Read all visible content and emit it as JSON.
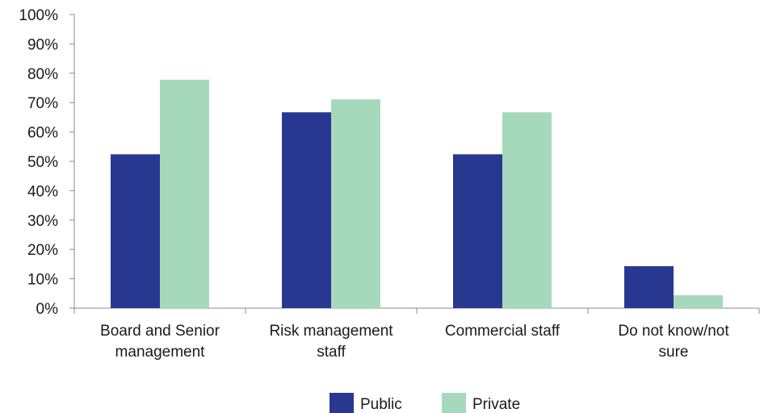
{
  "chart_data": {
    "type": "bar",
    "categories": [
      [
        "Board and Senior",
        "management"
      ],
      [
        "Risk management",
        "staff"
      ],
      [
        "Commercial staff"
      ],
      [
        "Do not know/not",
        "sure"
      ]
    ],
    "series": [
      {
        "name": "Public",
        "values": [
          52.4,
          66.7,
          52.4,
          14.3
        ],
        "color": "#283891"
      },
      {
        "name": "Private",
        "values": [
          77.8,
          71.1,
          66.7,
          4.4
        ],
        "color": "#a6d9bb"
      }
    ],
    "y_ticks": [
      "0%",
      "10%",
      "20%",
      "30%",
      "40%",
      "50%",
      "60%",
      "70%",
      "80%",
      "90%",
      "100%"
    ],
    "ylim": [
      0,
      100
    ],
    "grid": false,
    "legend_position": "bottom-center"
  }
}
